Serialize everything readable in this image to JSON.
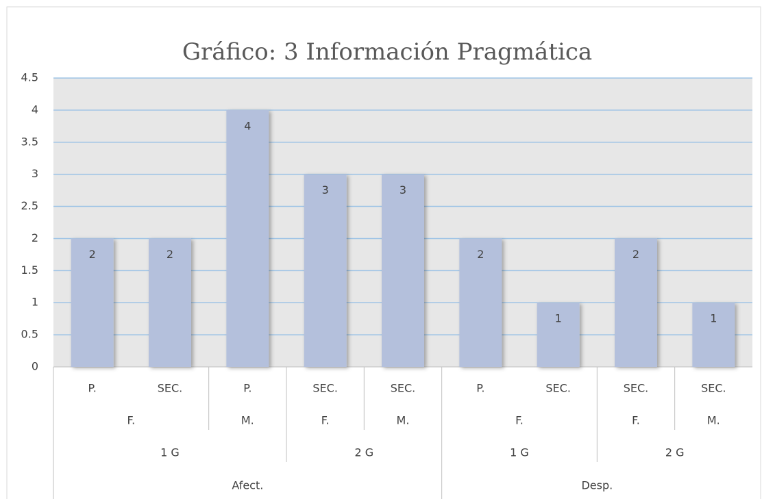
{
  "chart_data": {
    "type": "bar",
    "title": "Gráfico: 3 Información Pragmática",
    "categories": [
      "P.",
      "SEC.",
      "P.",
      "SEC.",
      "SEC.",
      "P.",
      "SEC.",
      "SEC.",
      "SEC."
    ],
    "category_groups": [
      [
        {
          "label": "F.",
          "count": 2
        },
        {
          "label": "M.",
          "count": 1
        },
        {
          "label": "F.",
          "count": 1
        },
        {
          "label": "M.",
          "count": 1
        },
        {
          "label": "F.",
          "count": 2
        },
        {
          "label": "F.",
          "count": 1
        },
        {
          "label": "M.",
          "count": 1
        }
      ],
      [
        {
          "label": "1 G",
          "count": 3
        },
        {
          "label": "2 G",
          "count": 2
        },
        {
          "label": "1 G",
          "count": 2
        },
        {
          "label": "2 G",
          "count": 2
        }
      ],
      [
        {
          "label": "Afect.",
          "count": 5
        },
        {
          "label": "Desp.",
          "count": 4
        }
      ]
    ],
    "values": [
      2,
      2,
      4,
      3,
      3,
      2,
      1,
      2,
      1
    ],
    "color": "#b4c0dc",
    "ylim": [
      0,
      4.5
    ],
    "yticks": [
      0,
      0.5,
      1,
      1.5,
      2,
      2.5,
      3,
      3.5,
      4,
      4.5
    ],
    "grid": true
  }
}
